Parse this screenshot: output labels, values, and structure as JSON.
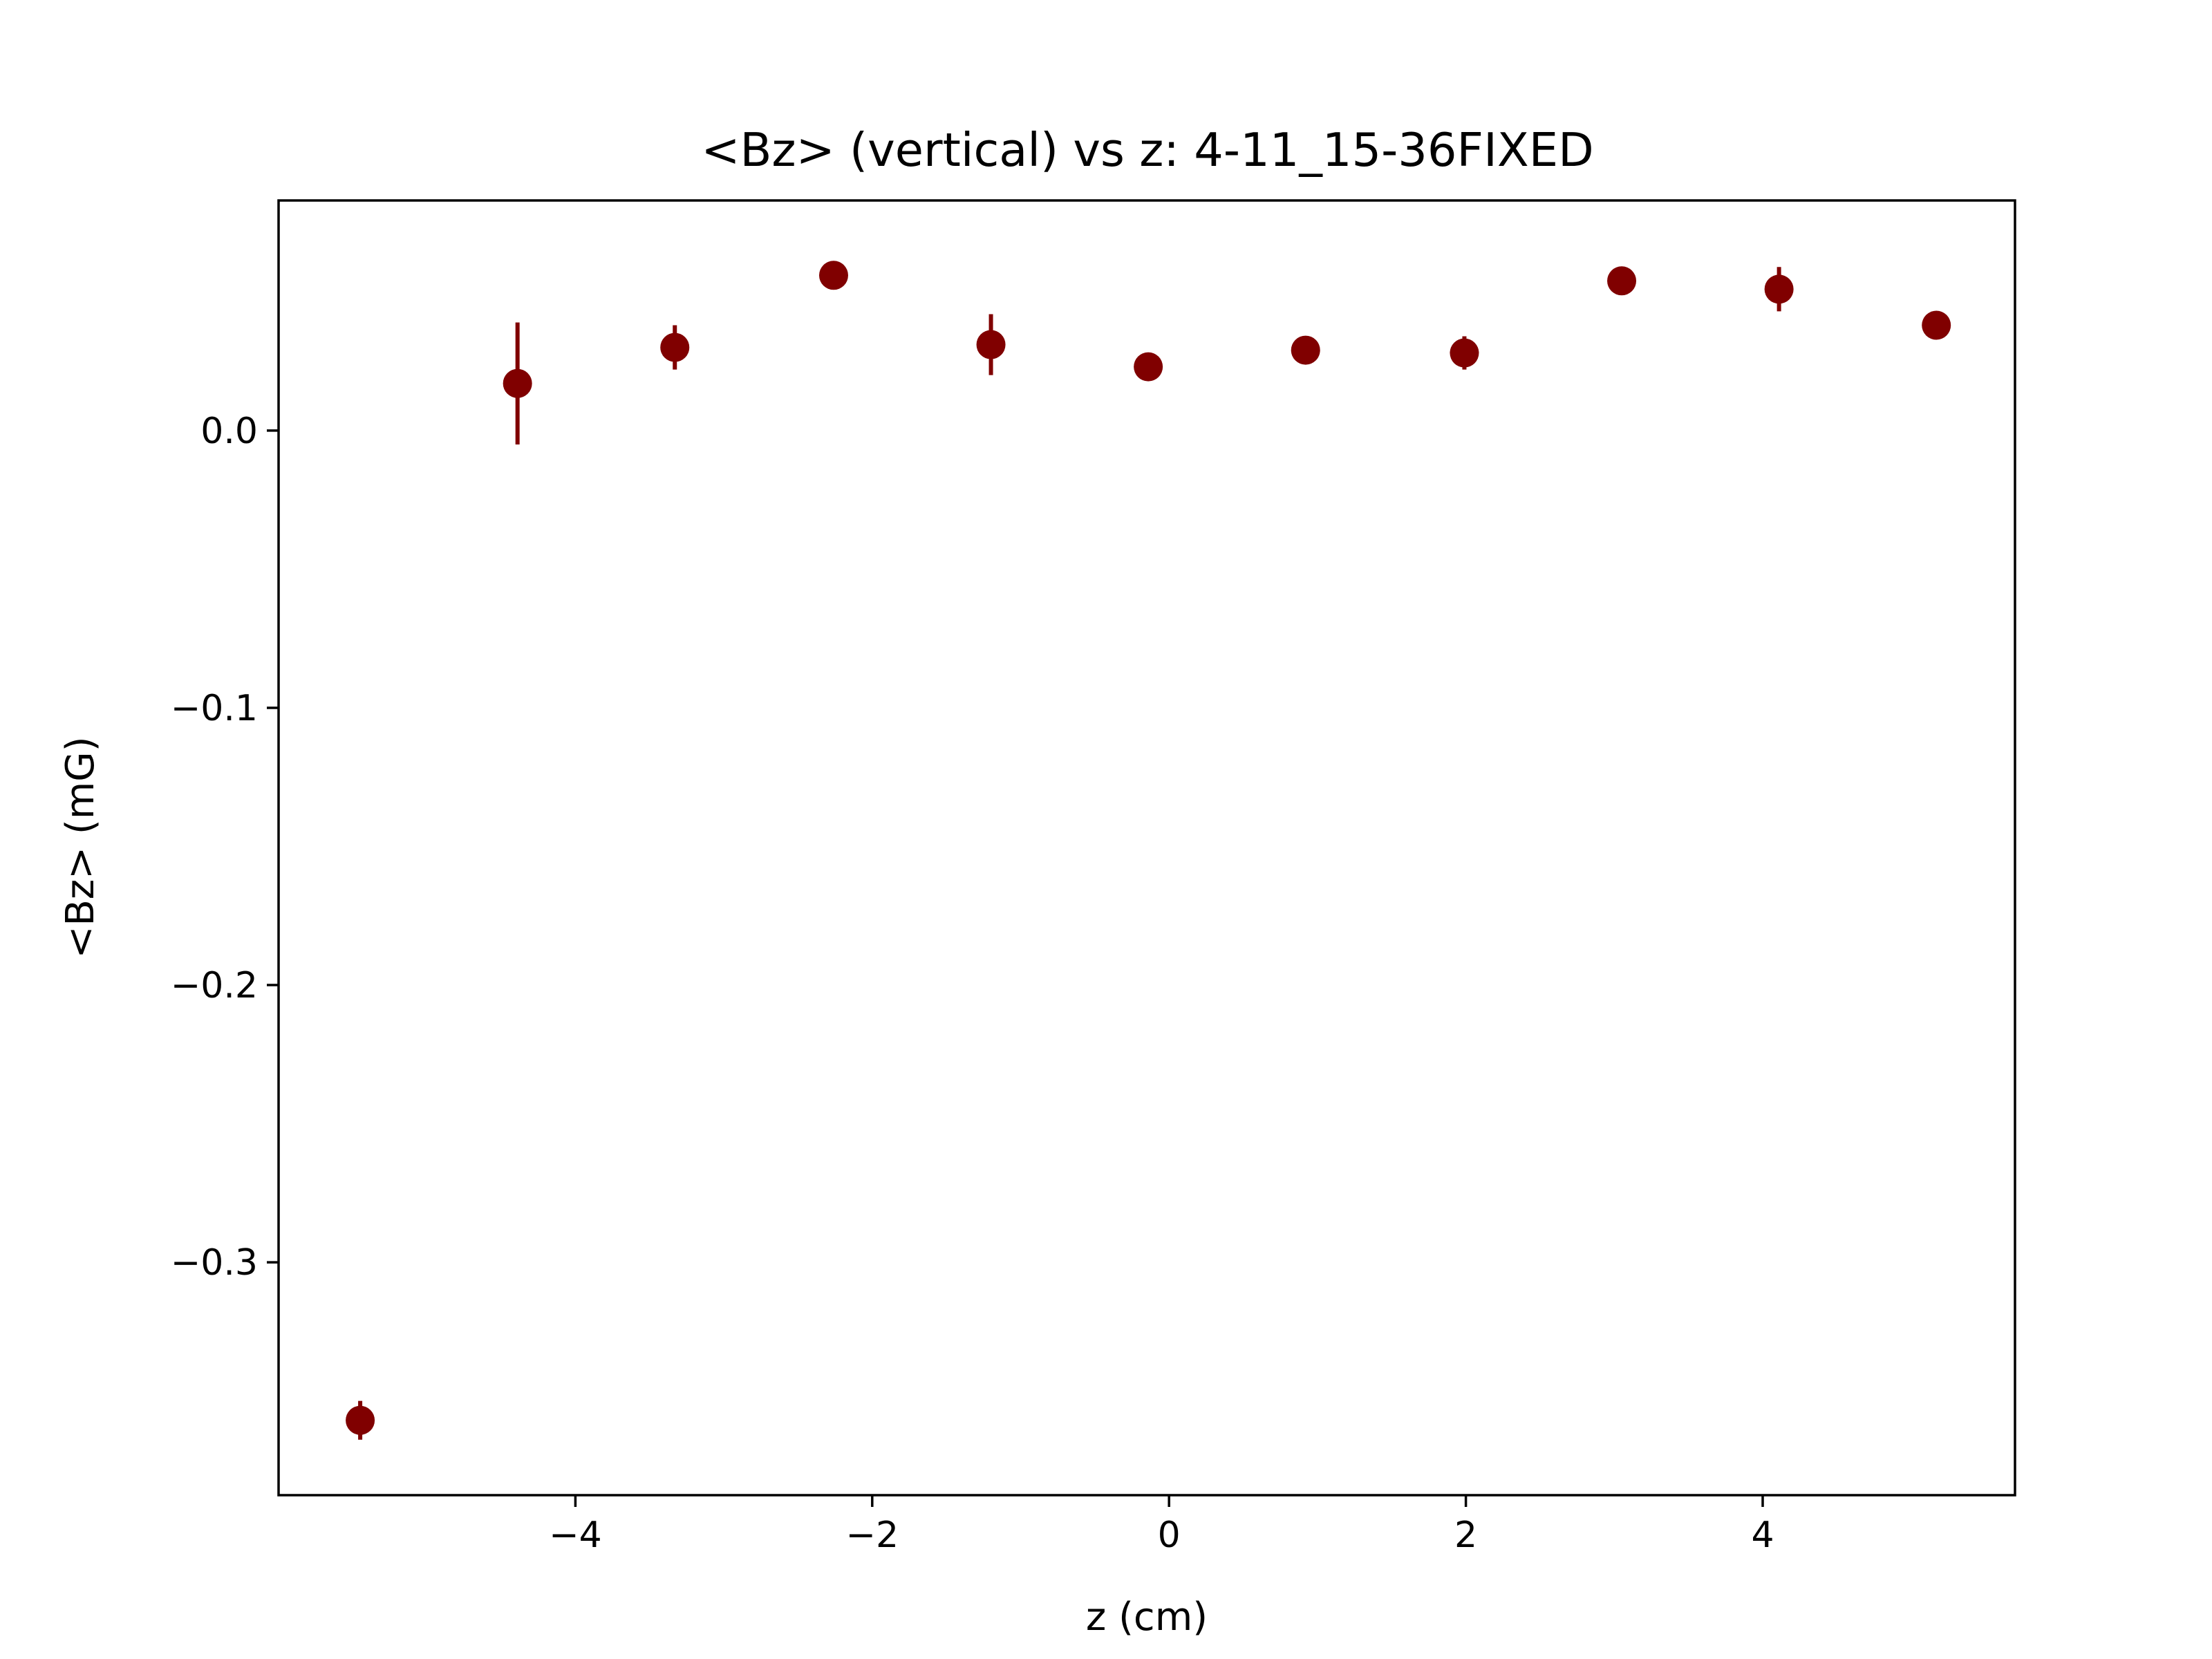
{
  "chart_data": {
    "type": "scatter",
    "title": "<Bz> (vertical) vs z: 4-11_15-36FIXED",
    "xlabel": "z (cm)",
    "ylabel": "<Bz> (mG)",
    "xlim": [
      -6.0,
      5.7
    ],
    "ylim": [
      -0.384,
      0.083
    ],
    "xticks": [
      -4,
      -2,
      0,
      2,
      4
    ],
    "xtick_labels": [
      "−4",
      "−2",
      "0",
      "2",
      "4"
    ],
    "yticks": [
      0.0,
      -0.1,
      -0.2,
      -0.3
    ],
    "ytick_labels": [
      "0.0",
      "−0.1",
      "−0.2",
      "−0.3"
    ],
    "grid": false,
    "legend": "none",
    "marker_color": "#800000",
    "series": [
      {
        "x": [
          -5.45,
          -4.39,
          -3.33,
          -2.26,
          -1.2,
          -0.14,
          0.92,
          1.99,
          3.05,
          4.11,
          5.17
        ],
        "y": [
          -0.357,
          0.017,
          0.03,
          0.056,
          0.031,
          0.023,
          0.029,
          0.028,
          0.054,
          0.051,
          0.038
        ],
        "yerr": [
          0.007,
          0.022,
          0.008,
          0.002,
          0.011,
          0.003,
          0.002,
          0.006,
          0.002,
          0.008,
          0.002
        ]
      }
    ]
  }
}
